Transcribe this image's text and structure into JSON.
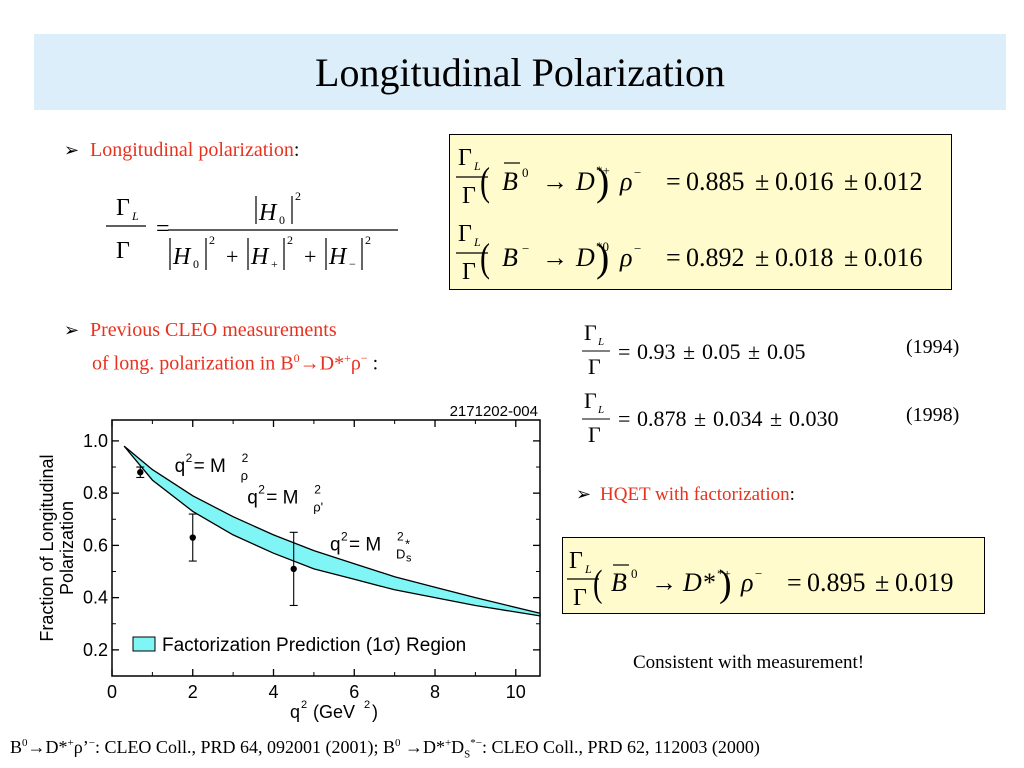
{
  "title": "Longitudinal Polarization",
  "bullets": {
    "b1": {
      "red": "Longitudinal polarization",
      "rest": ":"
    },
    "b2": {
      "red": "Previous CLEO measurements",
      "line2_prefix": "of long. polarization in B",
      "line2_sup": "0",
      "line2_mid": "→D*",
      "line2_sup2": "+",
      "line2_rest": "ρ",
      "line2_sup3": "−",
      "line2_end": " :"
    },
    "b3": {
      "red": "HQET with factorization",
      "rest": ":"
    }
  },
  "formula_general": {
    "lhs_num": "Γ",
    "lhs_num_sub": "L",
    "lhs_den": "Γ",
    "eq": "=",
    "rhs_num": "H",
    "rhs_num_sub": "0",
    "sq": "2",
    "rhs_den_terms": [
      {
        "sym": "H",
        "sub": "0"
      },
      {
        "sym": "H",
        "sub": "+"
      },
      {
        "sym": "H",
        "sub": "−"
      }
    ],
    "plus": "+"
  },
  "box_results": [
    {
      "decay_lhs": "B",
      "decay_lhs_sup": "0",
      "bar": true,
      "arrow": "→",
      "d": "D",
      "d_sup": "*+",
      "rho": "ρ",
      "rho_sup": "−",
      "eq": "=",
      "value": "0.885",
      "err1": "0.016",
      "err2": "0.012",
      "pm": "±"
    },
    {
      "decay_lhs": "B",
      "decay_lhs_sup": "−",
      "bar": false,
      "arrow": "→",
      "d": "D",
      "d_sup": "*0",
      "rho": "ρ",
      "rho_sup": "−",
      "eq": "=",
      "value": "0.892",
      "err1": "0.018",
      "err2": "0.016",
      "pm": "±"
    }
  ],
  "previous": [
    {
      "eq": "=",
      "value": "0.93",
      "err1": "0.05",
      "err2": "0.05",
      "pm": "±",
      "year": "(1994)"
    },
    {
      "eq": "=",
      "value": "0.878",
      "err1": "0.034",
      "err2": "0.030",
      "pm": "±",
      "year": "(1998)"
    }
  ],
  "hqet": {
    "decay_lhs": "B",
    "decay_lhs_sup": "0",
    "arrow": "→",
    "d": "D",
    "d_sup": "*+",
    "rho": "ρ",
    "rho_sup": "−",
    "eq": "=",
    "value": "0.895",
    "err1": "0.019",
    "pm": "±"
  },
  "consistent": "Consistent with measurement!",
  "footer": {
    "part1": "B",
    "part1_sup": "0",
    "part1_rest": "→D*",
    "part1_sup2": "+",
    "part1_rho": "ρ’",
    "part1_sup3": "−",
    "part1_end": ": CLEO Coll., PRD 64, 092001 (2001);  B",
    "part2_sup": "0",
    "part2_rest": " →D*",
    "part2_sup2": "+",
    "part2_ds": "D",
    "part2_sub": "S",
    "part2_sup3": "*−",
    "part2_end": ": CLEO Coll., PRD 62, 112003 (2000)"
  },
  "chart_data": {
    "type": "line",
    "figure_id": "2171202-004",
    "xlabel": "q",
    "xlabel_sup": "2",
    "xlabel_unit": "(GeV",
    "xlabel_unit_sup": "2",
    "xlabel_close": ")",
    "ylabel_line1": "Fraction of Longitudinal",
    "ylabel_line2": "Polarization",
    "xlim": [
      0,
      10.6
    ],
    "ylim": [
      0.1,
      1.08
    ],
    "xticks": [
      0,
      2,
      4,
      6,
      8,
      10
    ],
    "yticks": [
      0.2,
      0.4,
      0.6,
      0.8,
      1.0
    ],
    "ytick_labels": [
      "0.2",
      "0.4",
      "0.6",
      "0.8",
      "1.0"
    ],
    "xtick_labels": [
      "0",
      "2",
      "4",
      "6",
      "8",
      "10"
    ],
    "band": {
      "name": "Factorization Prediction (1σ) Region",
      "color": "#7ff5f5",
      "x": [
        0.3,
        1.0,
        2.0,
        3.0,
        4.0,
        5.0,
        6.0,
        7.0,
        8.0,
        9.0,
        10.6
      ],
      "upper": [
        0.98,
        0.89,
        0.79,
        0.71,
        0.64,
        0.58,
        0.53,
        0.48,
        0.44,
        0.4,
        0.34
      ],
      "lower": [
        0.98,
        0.85,
        0.73,
        0.64,
        0.57,
        0.51,
        0.47,
        0.43,
        0.4,
        0.37,
        0.33
      ]
    },
    "points": [
      {
        "x": 0.7,
        "y": 0.88,
        "err": 0.02
      },
      {
        "x": 2.0,
        "y": 0.63,
        "err": 0.09
      },
      {
        "x": 4.5,
        "y": 0.51,
        "err": 0.14
      }
    ],
    "annotations": [
      {
        "text": "q",
        "sup": "2",
        "eq": " = M",
        "sub": "ρ",
        "sup2": "2",
        "x": 1.55,
        "y": 0.88
      },
      {
        "text": "q",
        "sup": "2",
        "eq": " = M",
        "sub": "ρ'",
        "sup2": "2",
        "x": 3.35,
        "y": 0.76
      },
      {
        "text": "q",
        "sup": "2",
        "eq": " = M",
        "sub": "D",
        "subsub": "s",
        "substar": "*",
        "sup2": "2",
        "x": 5.4,
        "y": 0.58
      }
    ],
    "legend": "bottom"
  }
}
